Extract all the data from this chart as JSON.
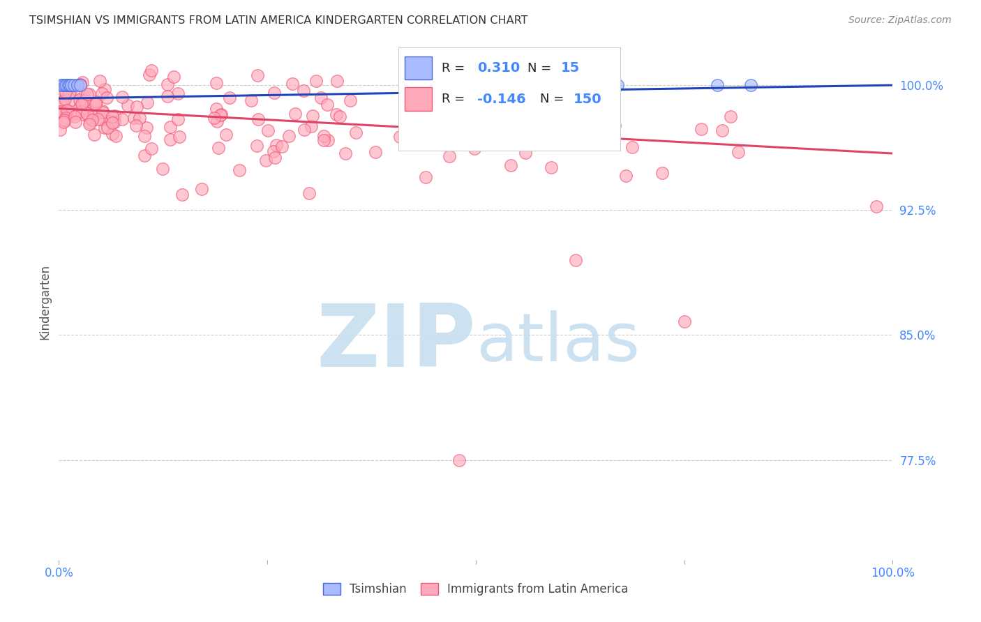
{
  "title": "TSIMSHIAN VS IMMIGRANTS FROM LATIN AMERICA KINDERGARTEN CORRELATION CHART",
  "source": "Source: ZipAtlas.com",
  "ylabel": "Kindergarten",
  "ytick_labels": [
    "100.0%",
    "92.5%",
    "85.0%",
    "77.5%"
  ],
  "ytick_values": [
    1.0,
    0.925,
    0.85,
    0.775
  ],
  "xlim": [
    0.0,
    1.0
  ],
  "ylim": [
    0.715,
    1.025
  ],
  "legend_blue_r": "0.310",
  "legend_blue_n": "15",
  "legend_pink_r": "-0.146",
  "legend_pink_n": "150",
  "blue_fill_color": "#aabbff",
  "blue_edge_color": "#4466dd",
  "pink_fill_color": "#ffaabb",
  "pink_edge_color": "#ee5577",
  "blue_line_color": "#2244bb",
  "pink_line_color": "#dd4466",
  "grid_color": "#cccccc",
  "tick_color": "#4488ff",
  "background_color": "#ffffff",
  "watermark_zip_color": "#c8dff0",
  "watermark_atlas_color": "#c8dff0",
  "tsimshian_label": "Tsimshian",
  "immigrants_label": "Immigrants from Latin America",
  "blue_trend_x0": 0.0,
  "blue_trend_y0": 0.992,
  "blue_trend_x1": 1.0,
  "blue_trend_y1": 1.0,
  "pink_trend_x0": 0.0,
  "pink_trend_y0": 0.986,
  "pink_trend_x1": 1.0,
  "pink_trend_y1": 0.959,
  "blue_points_x": [
    0.002,
    0.005,
    0.007,
    0.009,
    0.011,
    0.013,
    0.015,
    0.018,
    0.022,
    0.026,
    0.6,
    0.63,
    0.67,
    0.79,
    0.83
  ],
  "blue_points_y": [
    1.0,
    1.0,
    1.0,
    1.0,
    1.0,
    1.0,
    1.0,
    1.0,
    1.0,
    1.0,
    1.0,
    1.0,
    1.0,
    1.0,
    1.0
  ]
}
